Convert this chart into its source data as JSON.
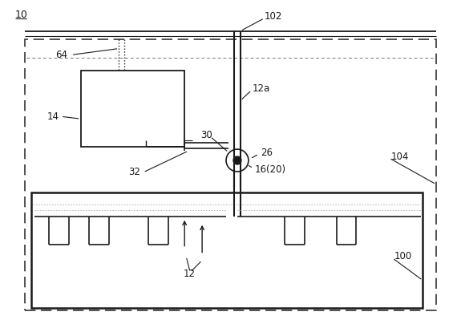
{
  "bg_color": "#ffffff",
  "line_color": "#1a1a1a",
  "dashed_color": "#333333",
  "fig_width": 5.75,
  "fig_height": 4.09,
  "dpi": 100
}
